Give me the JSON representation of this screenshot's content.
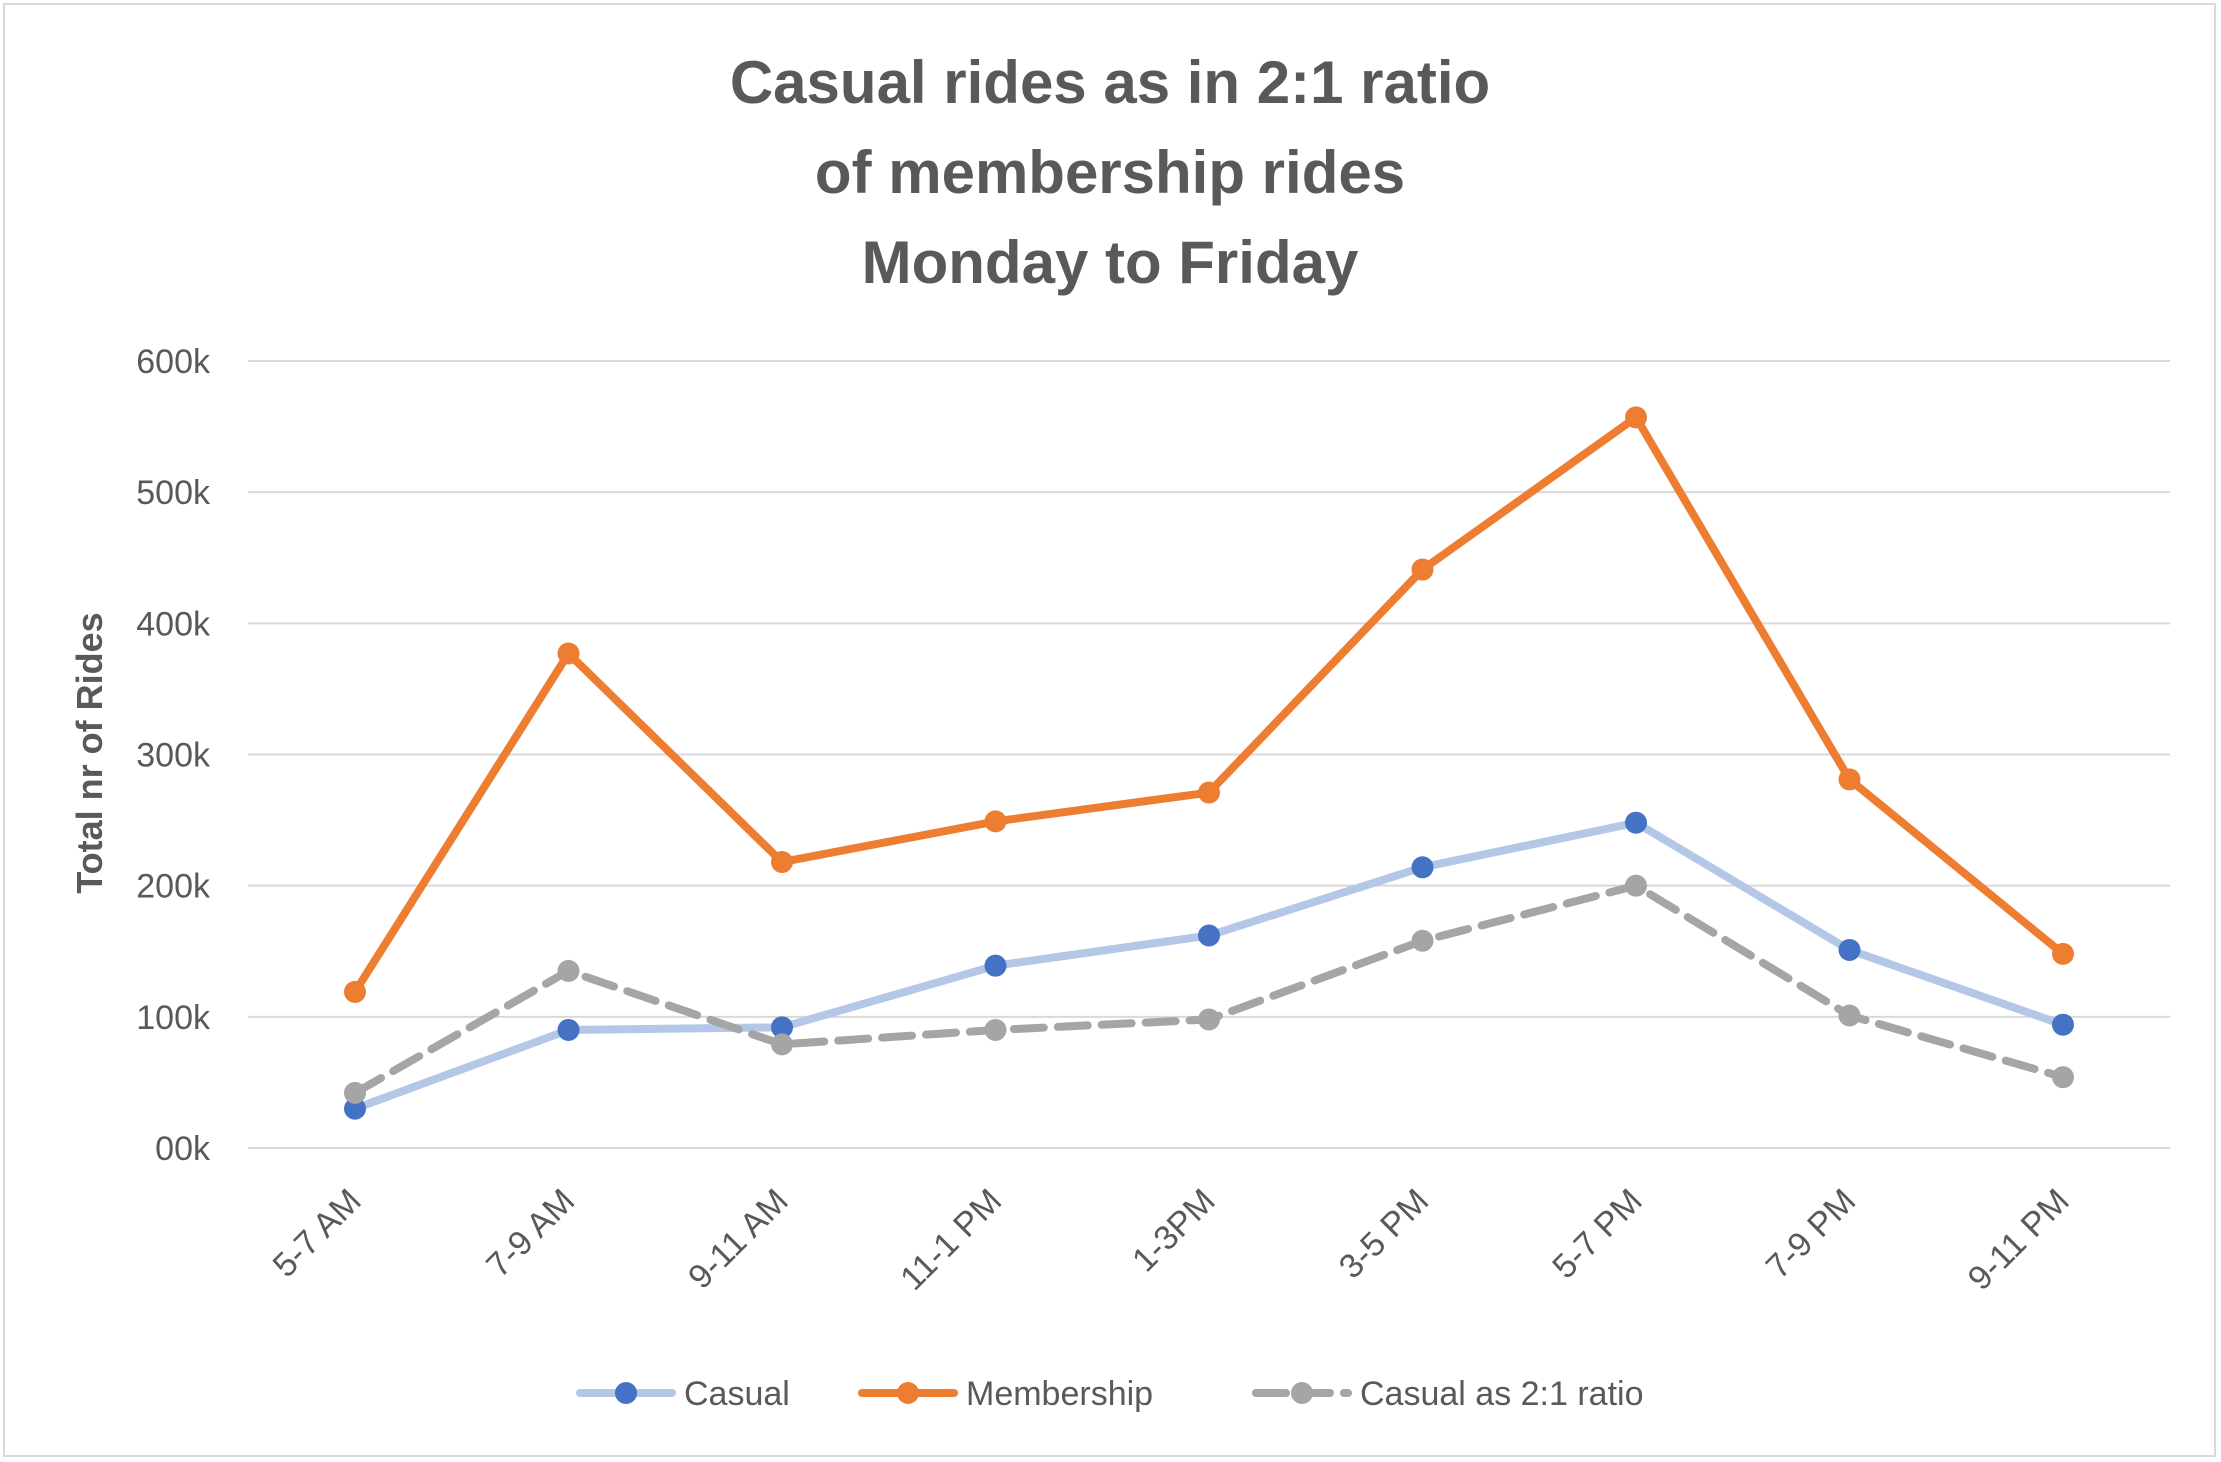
{
  "chart_data": {
    "type": "line",
    "title_lines": [
      "Casual rides as in 2:1 ratio",
      "of membership rides",
      "Monday to Friday"
    ],
    "ylabel": "Total nr of Rides",
    "xlabel": "",
    "ylim": [
      0,
      600000
    ],
    "y_ticks": [
      0,
      100000,
      200000,
      300000,
      400000,
      500000,
      600000
    ],
    "y_tick_labels": [
      "00k",
      "100k",
      "200k",
      "300k",
      "400k",
      "500k",
      "600k"
    ],
    "grid": true,
    "legend_position": "bottom",
    "categories": [
      "5-7 AM",
      "7-9 AM",
      "9-11 AM",
      "11-1 PM",
      "1-3PM",
      "3-5 PM",
      "5-7 PM",
      "7-9 PM",
      "9-11 PM"
    ],
    "series": [
      {
        "name": "Casual",
        "values": [
          30000,
          90000,
          92000,
          139000,
          162000,
          214000,
          248000,
          151000,
          94000
        ],
        "line_color": "#b4c7e7",
        "marker_color": "#4472c4",
        "dashed": false
      },
      {
        "name": "Membership",
        "values": [
          119000,
          377000,
          218000,
          249000,
          271000,
          441000,
          557000,
          281000,
          148000
        ],
        "line_color": "#ed7d31",
        "marker_color": "#ed7d31",
        "dashed": false
      },
      {
        "name": "Casual as 2:1 ratio",
        "values": [
          42000,
          135000,
          79000,
          90000,
          98000,
          158000,
          200000,
          101000,
          54000
        ],
        "line_color": "#a5a5a5",
        "marker_color": "#a5a5a5",
        "dashed": true
      }
    ]
  }
}
